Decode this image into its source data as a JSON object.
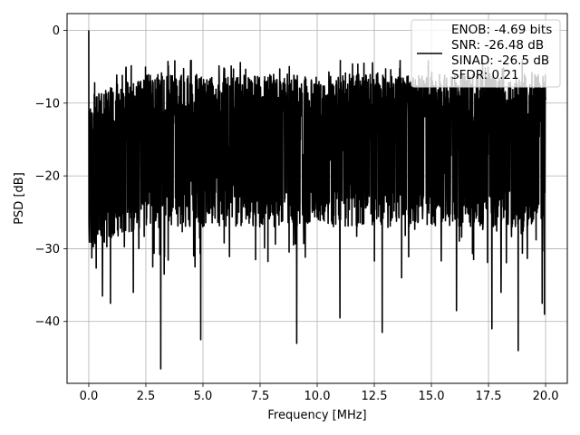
{
  "chart_data": {
    "type": "line",
    "title": "",
    "xlabel": "Frequency [MHz]",
    "ylabel": "PSD [dB]",
    "xlim": [
      -0.95,
      20.95
    ],
    "ylim": [
      -48.5,
      2.3
    ],
    "xticks": [
      0.0,
      2.5,
      5.0,
      7.5,
      10.0,
      12.5,
      15.0,
      17.5,
      20.0
    ],
    "xtick_labels": [
      "0.0",
      "2.5",
      "5.0",
      "7.5",
      "10.0",
      "12.5",
      "15.0",
      "17.5",
      "20.0"
    ],
    "yticks": [
      0,
      -10,
      -20,
      -30,
      -40
    ],
    "ytick_labels": [
      "0",
      "−10",
      "−20",
      "−30",
      "−40"
    ],
    "grid": true,
    "legend_position": "top-right",
    "series": [
      {
        "color": "#000000",
        "x_range": [
          0.0,
          20.0
        ],
        "typical_upper_envelope_db": -6,
        "typical_lower_envelope_db": -22,
        "peak_value_db": 0.0,
        "peak_x": 0.0,
        "deep_notches": [
          {
            "x": 0.6,
            "y": -36.5
          },
          {
            "x": 0.95,
            "y": -37.5
          },
          {
            "x": 1.95,
            "y": -36.0
          },
          {
            "x": 2.8,
            "y": -32.5
          },
          {
            "x": 3.15,
            "y": -46.5
          },
          {
            "x": 3.3,
            "y": -33.5
          },
          {
            "x": 4.65,
            "y": -32.5
          },
          {
            "x": 4.9,
            "y": -42.5
          },
          {
            "x": 7.3,
            "y": -31.5
          },
          {
            "x": 9.1,
            "y": -43.0
          },
          {
            "x": 11.0,
            "y": -39.5
          },
          {
            "x": 12.85,
            "y": -41.5
          },
          {
            "x": 13.7,
            "y": -34.0
          },
          {
            "x": 16.1,
            "y": -38.5
          },
          {
            "x": 17.65,
            "y": -41.0
          },
          {
            "x": 18.05,
            "y": -36.0
          },
          {
            "x": 18.8,
            "y": -44.0
          },
          {
            "x": 19.85,
            "y": -37.5
          },
          {
            "x": 19.95,
            "y": -39.0
          }
        ]
      }
    ],
    "legend": {
      "lines": [
        "ENOB: -4.69 bits",
        "SNR: -26.48 dB",
        "SINAD: -26.5 dB",
        "SFDR: 0.21"
      ]
    }
  }
}
